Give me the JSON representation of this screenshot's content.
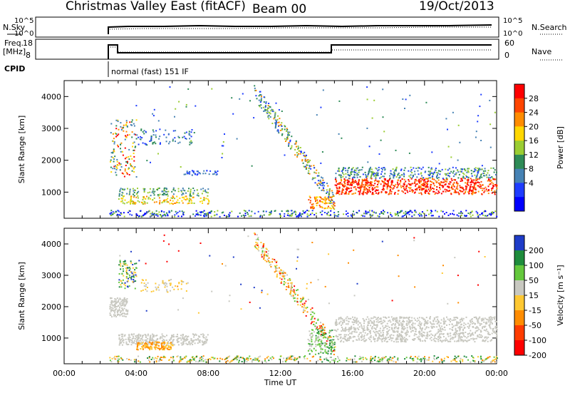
{
  "header": {
    "station": "Christmas Valley East (fitACF)",
    "beam": "Beam 00",
    "date": "19/Oct/2013"
  },
  "top_panels": {
    "nsky_label": "N.Sky",
    "nsky_ticks": [
      "10^5",
      "10^0"
    ],
    "nsearch_label": "N.Search",
    "nsearch_ticks": [
      "10^5",
      "10^0"
    ],
    "freq_label": "Freq.",
    "freq_units": "[MHz]",
    "freq_ticks": [
      "18",
      "8"
    ],
    "nave_label": "Nave",
    "nave_ticks": [
      "60",
      "0"
    ],
    "cpid_label": "CPID",
    "cpid_text": "normal (fast) 151 IF"
  },
  "chart_data": [
    {
      "type": "heatmap",
      "name": "power",
      "ylabel": "Slant Range [km]",
      "xlim": [
        0,
        24
      ],
      "ylim": [
        180,
        4500
      ],
      "yticks": [
        1000,
        2000,
        3000,
        4000
      ],
      "colorbar": {
        "label": "Power [dB]",
        "ticks": [
          "28",
          "24",
          "20",
          "16",
          "12",
          "8",
          "4"
        ],
        "colors": [
          "#ff0000",
          "#ff4500",
          "#ff8c00",
          "#ffd700",
          "#9acd32",
          "#2e8b57",
          "#4682b4",
          "#1e3cff",
          "#0000ff"
        ]
      }
    },
    {
      "type": "heatmap",
      "name": "velocity",
      "ylabel": "Slant Range [km]",
      "xlabel": "Time UT",
      "xlim": [
        0,
        24
      ],
      "ylim": [
        180,
        4500
      ],
      "yticks": [
        1000,
        2000,
        3000,
        4000
      ],
      "xticks": [
        "00:00",
        "04:00",
        "08:00",
        "12:00",
        "16:00",
        "20:00",
        "00:00"
      ],
      "colorbar": {
        "label": "Velocity [m s⁻¹]",
        "ticks": [
          "200",
          "100",
          "50",
          "15",
          "-15",
          "-50",
          "-100",
          "-200"
        ],
        "colors": [
          "#1e3cc8",
          "#1e8c3c",
          "#64c83c",
          "#c8c8c0",
          "#ffc832",
          "#ff8c00",
          "#ff3c00",
          "#ff0000"
        ]
      }
    }
  ]
}
